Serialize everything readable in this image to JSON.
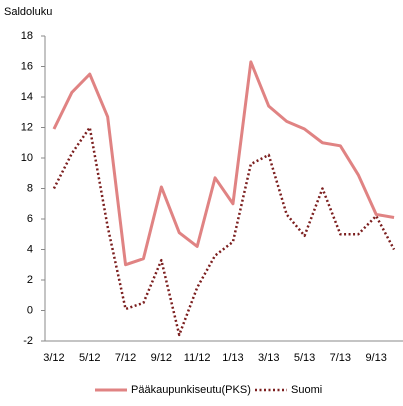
{
  "chart_data": {
    "type": "line",
    "y_label": "Saldoluku",
    "categories": [
      "3/12",
      null,
      "5/12",
      null,
      "7/12",
      null,
      "9/12",
      null,
      "11/12",
      null,
      "1/13",
      null,
      "3/13",
      null,
      "5/13",
      null,
      "7/13",
      null,
      "9/13",
      null
    ],
    "series": [
      {
        "name": "Pääkaupunkiseutu(PKS)",
        "color": "#e08383",
        "style": "solid",
        "values": [
          11.9,
          14.3,
          15.5,
          12.7,
          3.0,
          3.4,
          8.1,
          5.1,
          4.2,
          8.7,
          7.0,
          16.3,
          13.4,
          12.4,
          11.9,
          11.0,
          10.8,
          8.9,
          6.3,
          6.1
        ]
      },
      {
        "name": "Suomi",
        "color": "#7b1e1e",
        "style": "dotted",
        "values": [
          8.0,
          10.3,
          12.0,
          5.5,
          0.1,
          0.5,
          3.3,
          -1.6,
          1.5,
          3.6,
          4.5,
          9.6,
          10.2,
          6.3,
          4.9,
          8.0,
          5.0,
          5.0,
          6.2,
          4.0
        ]
      }
    ],
    "ylim": [
      -2,
      18
    ],
    "yticks": [
      -2,
      0,
      2,
      4,
      6,
      8,
      10,
      12,
      14,
      16,
      18
    ],
    "grid": false,
    "legend": "bottom"
  }
}
